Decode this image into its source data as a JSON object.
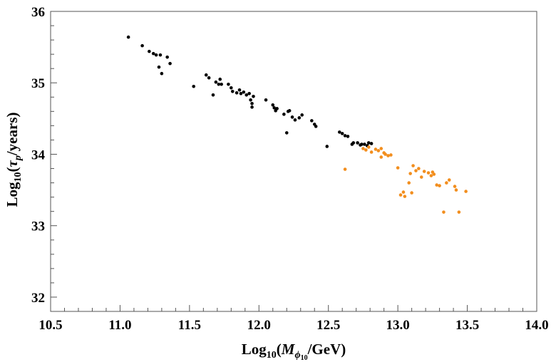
{
  "chart_data": {
    "type": "scatter",
    "title": "",
    "xlabel": {
      "prefix": "Log",
      "prefix_sub": "10",
      "open": "(",
      "var": "M",
      "var_sub": "ϕ",
      "var_sub_sub": "10",
      "suffix": "/GeV)"
    },
    "ylabel": {
      "prefix": "Log",
      "prefix_sub": "10",
      "open": "(",
      "var": "τ",
      "var_sub": "p",
      "suffix": "/years)"
    },
    "xlim": [
      10.5,
      14.0
    ],
    "ylim": [
      31.8,
      36.0
    ],
    "xticks": [
      "10.5",
      "11.0",
      "11.5",
      "12.0",
      "12.5",
      "13.0",
      "13.5",
      "14.0"
    ],
    "yticks": [
      "32",
      "33",
      "34",
      "35",
      "36"
    ],
    "grid": false,
    "series": [
      {
        "name": "black",
        "color": "#000000",
        "points": [
          [
            11.06,
            35.64
          ],
          [
            11.16,
            35.52
          ],
          [
            11.21,
            35.44
          ],
          [
            11.24,
            35.41
          ],
          [
            11.26,
            35.39
          ],
          [
            11.28,
            35.22
          ],
          [
            11.29,
            35.39
          ],
          [
            11.3,
            35.13
          ],
          [
            11.34,
            35.36
          ],
          [
            11.36,
            35.27
          ],
          [
            11.53,
            34.95
          ],
          [
            11.62,
            35.11
          ],
          [
            11.64,
            35.07
          ],
          [
            11.67,
            34.83
          ],
          [
            11.69,
            35.01
          ],
          [
            11.71,
            34.98
          ],
          [
            11.72,
            35.05
          ],
          [
            11.73,
            34.98
          ],
          [
            11.78,
            34.98
          ],
          [
            11.8,
            34.93
          ],
          [
            11.81,
            34.88
          ],
          [
            11.84,
            34.86
          ],
          [
            11.86,
            34.9
          ],
          [
            11.87,
            34.85
          ],
          [
            11.89,
            34.87
          ],
          [
            11.91,
            34.83
          ],
          [
            11.93,
            34.85
          ],
          [
            11.94,
            34.76
          ],
          [
            11.95,
            34.71
          ],
          [
            11.95,
            34.66
          ],
          [
            11.96,
            34.81
          ],
          [
            12.05,
            34.76
          ],
          [
            12.1,
            34.69
          ],
          [
            12.11,
            34.65
          ],
          [
            12.12,
            34.61
          ],
          [
            12.13,
            34.64
          ],
          [
            12.18,
            34.56
          ],
          [
            12.2,
            34.3
          ],
          [
            12.21,
            34.6
          ],
          [
            12.22,
            34.61
          ],
          [
            12.24,
            34.52
          ],
          [
            12.26,
            34.48
          ],
          [
            12.29,
            34.51
          ],
          [
            12.31,
            34.55
          ],
          [
            12.38,
            34.47
          ],
          [
            12.4,
            34.42
          ],
          [
            12.41,
            34.39
          ],
          [
            12.49,
            34.11
          ],
          [
            12.58,
            34.31
          ],
          [
            12.6,
            34.29
          ],
          [
            12.62,
            34.26
          ],
          [
            12.64,
            34.25
          ],
          [
            12.67,
            34.14
          ],
          [
            12.68,
            34.16
          ],
          [
            12.71,
            34.16
          ],
          [
            12.73,
            34.13
          ],
          [
            12.74,
            34.14
          ],
          [
            12.76,
            34.14
          ],
          [
            12.78,
            34.12
          ],
          [
            12.79,
            34.16
          ],
          [
            12.81,
            34.15
          ]
        ]
      },
      {
        "name": "orange",
        "color": "#f28e1e",
        "points": [
          [
            12.62,
            33.79
          ],
          [
            12.75,
            34.08
          ],
          [
            12.77,
            34.06
          ],
          [
            12.79,
            34.1
          ],
          [
            12.81,
            34.03
          ],
          [
            12.84,
            34.07
          ],
          [
            12.86,
            34.05
          ],
          [
            12.88,
            34.08
          ],
          [
            12.88,
            33.96
          ],
          [
            12.9,
            34.02
          ],
          [
            12.91,
            34.0
          ],
          [
            12.93,
            33.98
          ],
          [
            12.95,
            33.99
          ],
          [
            13.0,
            33.81
          ],
          [
            13.02,
            33.43
          ],
          [
            13.04,
            33.47
          ],
          [
            13.05,
            33.41
          ],
          [
            13.08,
            33.6
          ],
          [
            13.09,
            33.73
          ],
          [
            13.1,
            33.46
          ],
          [
            13.11,
            33.84
          ],
          [
            13.13,
            33.77
          ],
          [
            13.15,
            33.8
          ],
          [
            13.17,
            33.68
          ],
          [
            13.19,
            33.76
          ],
          [
            13.22,
            33.74
          ],
          [
            13.24,
            33.7
          ],
          [
            13.25,
            33.75
          ],
          [
            13.26,
            33.72
          ],
          [
            13.28,
            33.57
          ],
          [
            13.3,
            33.56
          ],
          [
            13.33,
            33.19
          ],
          [
            13.35,
            33.6
          ],
          [
            13.37,
            33.64
          ],
          [
            13.41,
            33.55
          ],
          [
            13.42,
            33.5
          ],
          [
            13.44,
            33.19
          ],
          [
            13.49,
            33.48
          ]
        ]
      }
    ]
  }
}
